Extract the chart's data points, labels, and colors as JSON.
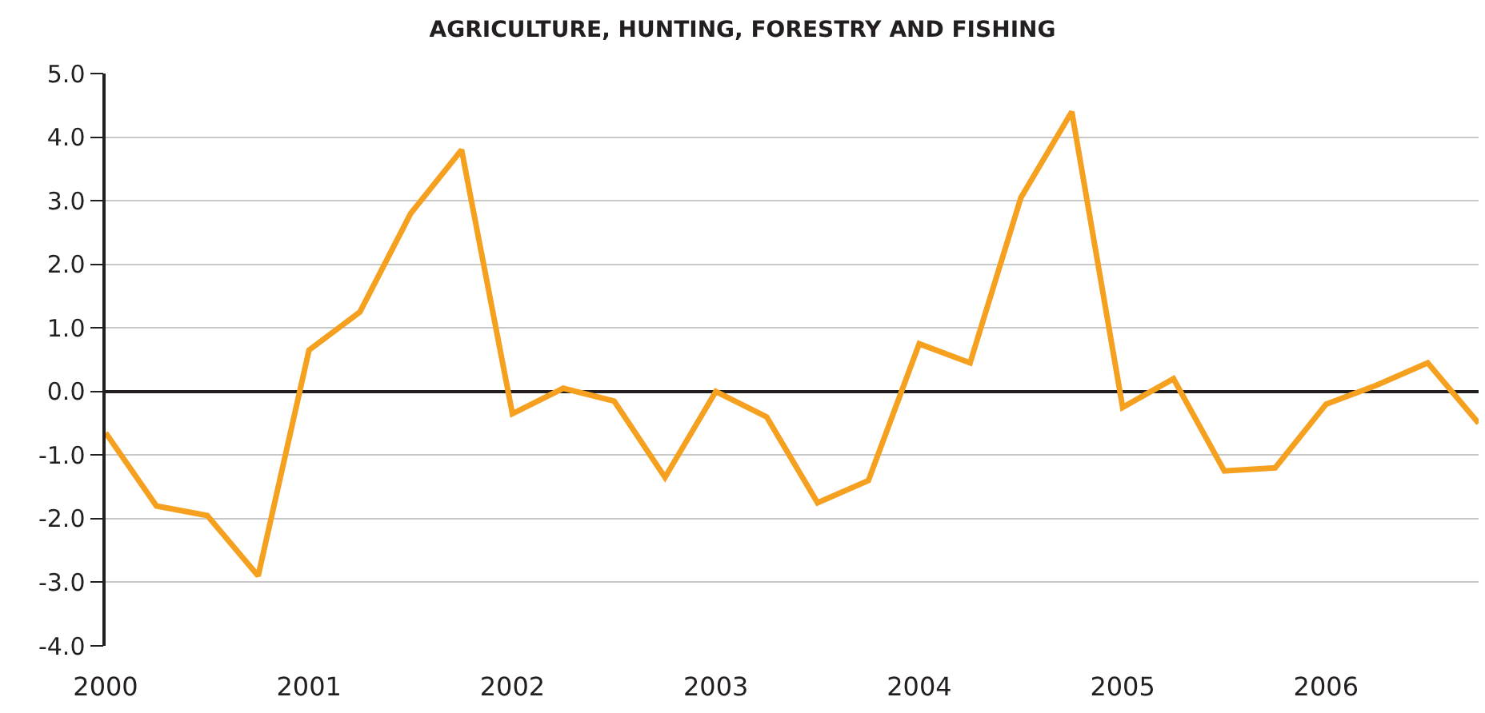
{
  "chart_data": {
    "type": "line",
    "title": "AGRICULTURE, HUNTING, FORESTRY AND FISHING",
    "categories": [
      "2000",
      null,
      null,
      null,
      "2001",
      null,
      null,
      null,
      "2002",
      null,
      null,
      null,
      "2003",
      null,
      null,
      null,
      "2004",
      null,
      null,
      null,
      "2005",
      null,
      null,
      null,
      "2006",
      null,
      null,
      null
    ],
    "series": [
      {
        "color": "#f5a01e",
        "values": [
          -0.65,
          -1.8,
          -1.95,
          -2.9,
          0.65,
          1.25,
          2.8,
          3.8,
          -0.35,
          0.05,
          -0.15,
          -1.35,
          0.0,
          -0.4,
          -1.75,
          -1.4,
          0.75,
          0.45,
          3.05,
          4.4,
          -0.25,
          0.2,
          -1.25,
          -1.2,
          -0.2,
          0.1,
          0.45,
          -0.5
        ]
      }
    ],
    "ylim": [
      -4,
      5
    ],
    "yticks": [
      {
        "value": -4,
        "label": "-4.0"
      },
      {
        "value": -3,
        "label": "-3.0"
      },
      {
        "value": -2,
        "label": "-2.0"
      },
      {
        "value": -1,
        "label": "-1.0"
      },
      {
        "value": 0,
        "label": "0.0"
      },
      {
        "value": 1,
        "label": "1.0"
      },
      {
        "value": 2,
        "label": "2.0"
      },
      {
        "value": 3,
        "label": "3.0"
      },
      {
        "value": 4,
        "label": "4.0"
      },
      {
        "value": 5,
        "label": "5.0"
      }
    ],
    "grid": "y",
    "marker": "none",
    "line_style": "solid"
  }
}
